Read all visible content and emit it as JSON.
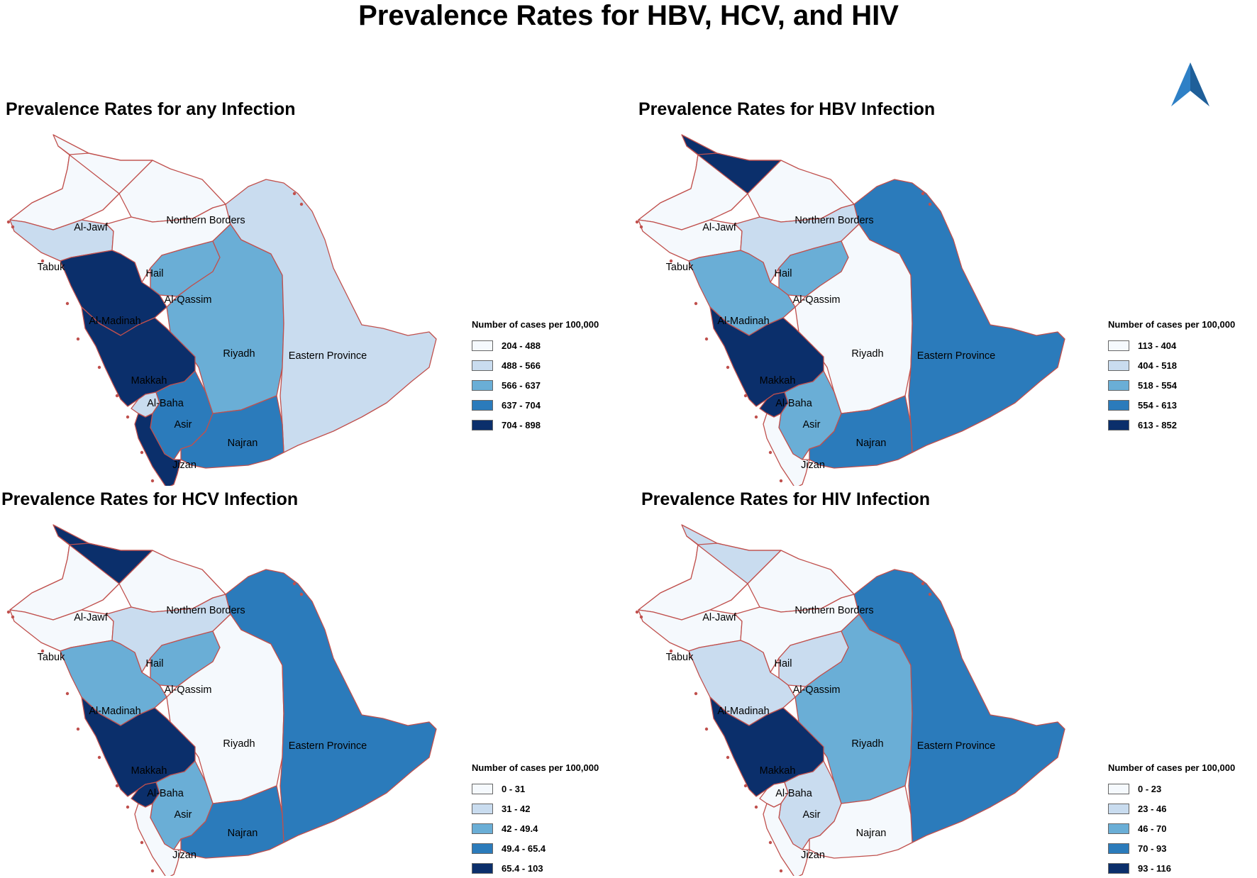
{
  "title": "Prevalence Rates for HBV, HCV, and HIV",
  "legend_title": "Number of cases per 100,000",
  "colors": [
    "#f5f9fd",
    "#c9dcef",
    "#6aaed6",
    "#2b7bbb",
    "#0b2f6b"
  ],
  "icons": {
    "north_arrow": "north-arrow-icon"
  },
  "region_names": [
    "Al-Jawf",
    "Northern Borders",
    "Tabuk",
    "Hail",
    "Al-Qassim",
    "Al-Madinah",
    "Riyadh",
    "Eastern Province",
    "Makkah",
    "Al-Baha",
    "Asir",
    "Najran",
    "Jizan"
  ],
  "maps": [
    {
      "title": "Prevalence Rates for any Infection",
      "legend": [
        "204 - 488",
        "488 - 566",
        "566 - 637",
        "637 - 704",
        "704 - 898"
      ],
      "classes": {
        "Al-Jawf": 1,
        "Northern Borders": 1,
        "Tabuk": 2,
        "Hail": 1,
        "Al-Qassim": 3,
        "Al-Madinah": 5,
        "Riyadh": 3,
        "Eastern Province": 2,
        "Makkah": 5,
        "Al-Baha": 2,
        "Asir": 4,
        "Najran": 4,
        "Jizan": 5
      }
    },
    {
      "title": "Prevalence Rates for HBV Infection",
      "legend": [
        "113 - 404",
        "404 - 518",
        "518 - 554",
        "554 - 613",
        "613 - 852"
      ],
      "classes": {
        "Al-Jawf": 5,
        "Northern Borders": 1,
        "Tabuk": 1,
        "Hail": 2,
        "Al-Qassim": 3,
        "Al-Madinah": 3,
        "Riyadh": 1,
        "Eastern Province": 4,
        "Makkah": 5,
        "Al-Baha": 5,
        "Asir": 3,
        "Najran": 4,
        "Jizan": 1
      }
    },
    {
      "title": "Prevalence Rates for HCV Infection",
      "legend": [
        "0 - 31",
        "31 - 42",
        "42 - 49.4",
        "49.4 - 65.4",
        "65.4 - 103"
      ],
      "classes": {
        "Al-Jawf": 5,
        "Northern Borders": 1,
        "Tabuk": 1,
        "Hail": 2,
        "Al-Qassim": 3,
        "Al-Madinah": 3,
        "Riyadh": 1,
        "Eastern Province": 4,
        "Makkah": 5,
        "Al-Baha": 5,
        "Asir": 3,
        "Najran": 4,
        "Jizan": 1
      }
    },
    {
      "title": "Prevalence Rates for HIV Infection",
      "legend": [
        "0 - 23",
        "23 - 46",
        "46 - 70",
        "70 - 93",
        "93 - 116"
      ],
      "classes": {
        "Al-Jawf": 2,
        "Northern Borders": 1,
        "Tabuk": 1,
        "Hail": 1,
        "Al-Qassim": 2,
        "Al-Madinah": 2,
        "Riyadh": 3,
        "Eastern Province": 4,
        "Makkah": 5,
        "Al-Baha": 1,
        "Asir": 2,
        "Najran": 1,
        "Jizan": 1
      }
    }
  ]
}
